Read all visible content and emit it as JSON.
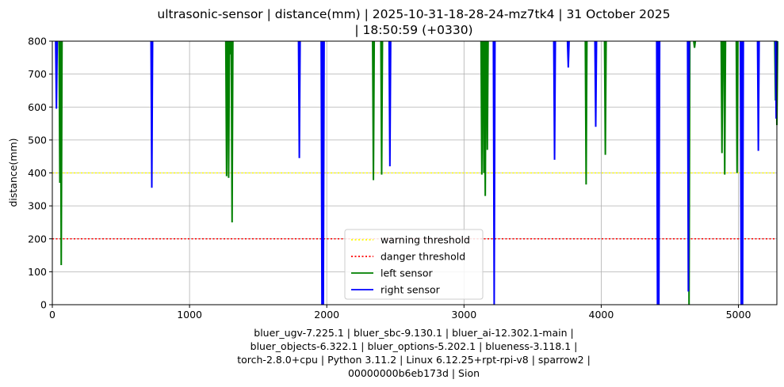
{
  "chart_data": {
    "type": "line",
    "title_lines": [
      "ultrasonic-sensor | distance(mm) | 2025-10-31-18-28-24-mz7tk4 | 31 October 2025",
      "| 18:50:59 (+0330)"
    ],
    "xlabel_lines": [
      "bluer_ugv-7.225.1 | bluer_sbc-9.130.1 | bluer_ai-12.302.1-main |",
      "bluer_objects-6.322.1 | bluer_options-5.202.1 | blueness-3.118.1 |",
      "torch-2.8.0+cpu | Python 3.11.2 | Linux 6.12.25+rpt-rpi-v8 | sparrow2 |",
      "00000000b6eb173d | Sion"
    ],
    "ylabel": "distance(mm)",
    "xlim": [
      0,
      5280
    ],
    "ylim": [
      0,
      800
    ],
    "x_ticks": [
      0,
      1000,
      2000,
      3000,
      4000,
      5000
    ],
    "y_ticks": [
      0,
      100,
      200,
      300,
      400,
      500,
      600,
      700,
      800
    ],
    "grid": true,
    "legend_position": "lower-center",
    "thresholds": [
      {
        "name": "warning threshold",
        "value": 400,
        "color": "#ffff00",
        "style": "dotted"
      },
      {
        "name": "danger threshold",
        "value": 200,
        "color": "#ff0000",
        "style": "dotted"
      }
    ],
    "series": [
      {
        "name": "left sensor",
        "color": "#008000",
        "dips": [
          [
            55,
            370
          ],
          [
            65,
            120
          ],
          [
            1270,
            390
          ],
          [
            1285,
            385
          ],
          [
            1300,
            760
          ],
          [
            1310,
            250
          ],
          [
            2340,
            378
          ],
          [
            2400,
            395
          ],
          [
            3130,
            395
          ],
          [
            3145,
            400
          ],
          [
            3155,
            330
          ],
          [
            3170,
            470
          ],
          [
            3890,
            365
          ],
          [
            4030,
            455
          ],
          [
            4640,
            0
          ],
          [
            4680,
            780
          ],
          [
            4880,
            460
          ],
          [
            4900,
            395
          ],
          [
            4990,
            400
          ],
          [
            5270,
            620
          ],
          [
            5280,
            545
          ]
        ]
      },
      {
        "name": "right sensor",
        "color": "#0000ff",
        "dips": [
          [
            30,
            595
          ],
          [
            725,
            355
          ],
          [
            1800,
            445
          ],
          [
            1965,
            0
          ],
          [
            1975,
            0
          ],
          [
            2460,
            420
          ],
          [
            3220,
            0
          ],
          [
            3660,
            440
          ],
          [
            3760,
            720
          ],
          [
            3960,
            540
          ],
          [
            4410,
            0
          ],
          [
            4420,
            0
          ],
          [
            4635,
            40
          ],
          [
            5020,
            0
          ],
          [
            5030,
            0
          ],
          [
            5145,
            467
          ],
          [
            5275,
            565
          ]
        ]
      }
    ]
  }
}
